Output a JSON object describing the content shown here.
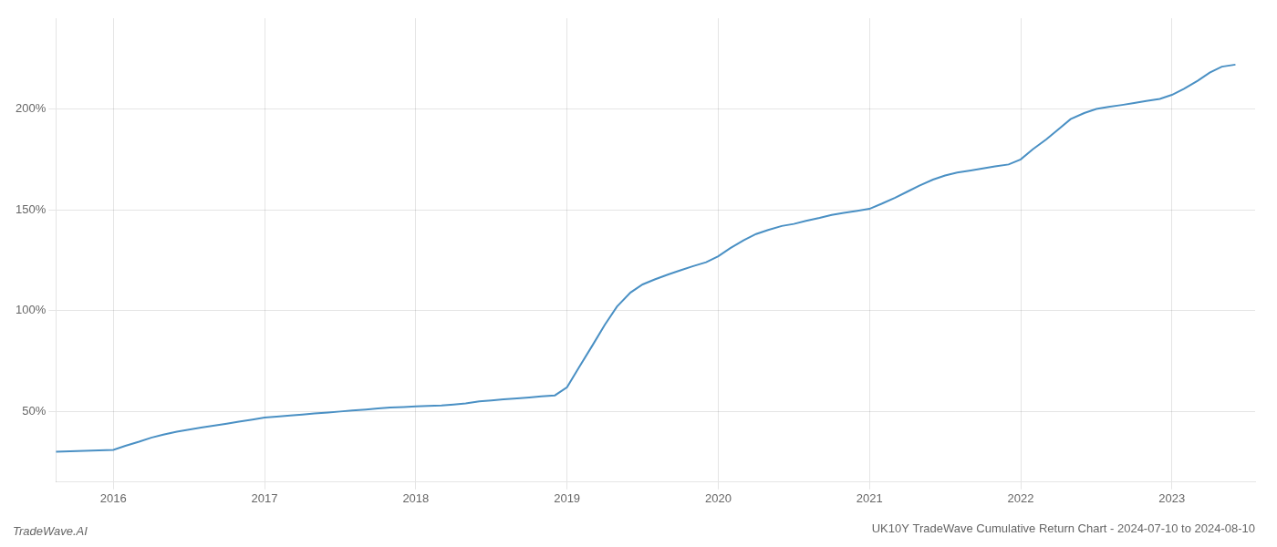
{
  "chart_data": {
    "type": "line",
    "title": "UK10Y TradeWave Cumulative Return Chart - 2024-07-10 to 2024-08-10",
    "annotations": [
      "TradeWave.AI"
    ],
    "color": "#4a90c4",
    "grid": true,
    "xlim": [
      2015.62,
      2023.55
    ],
    "ylim": [
      15,
      245
    ],
    "xticks": [
      2016,
      2017,
      2018,
      2019,
      2020,
      2021,
      2022,
      2023
    ],
    "yticks": [
      {
        "value": 50,
        "label": "50%"
      },
      {
        "value": 100,
        "label": "100%"
      },
      {
        "value": 150,
        "label": "150%"
      },
      {
        "value": 200,
        "label": "200%"
      }
    ],
    "x": [
      2015.62,
      2016.0,
      2016.08,
      2016.17,
      2016.25,
      2016.33,
      2016.42,
      2016.5,
      2016.58,
      2016.67,
      2016.75,
      2016.83,
      2016.92,
      2017.0,
      2017.08,
      2017.17,
      2017.25,
      2017.33,
      2017.42,
      2017.5,
      2017.58,
      2017.67,
      2017.75,
      2017.83,
      2017.92,
      2018.0,
      2018.08,
      2018.17,
      2018.25,
      2018.33,
      2018.42,
      2018.5,
      2018.58,
      2018.67,
      2018.75,
      2018.83,
      2018.92,
      2019.0,
      2019.08,
      2019.17,
      2019.25,
      2019.33,
      2019.42,
      2019.5,
      2019.58,
      2019.67,
      2019.75,
      2019.83,
      2019.92,
      2020.0,
      2020.08,
      2020.17,
      2020.25,
      2020.33,
      2020.42,
      2020.5,
      2020.58,
      2020.67,
      2020.75,
      2020.83,
      2020.92,
      2021.0,
      2021.08,
      2021.17,
      2021.25,
      2021.33,
      2021.42,
      2021.5,
      2021.58,
      2021.67,
      2021.75,
      2021.83,
      2021.92,
      2022.0,
      2022.08,
      2022.17,
      2022.25,
      2022.33,
      2022.42,
      2022.5,
      2022.58,
      2022.67,
      2022.75,
      2022.83,
      2022.92,
      2023.0,
      2023.08,
      2023.17,
      2023.25,
      2023.33,
      2023.42
    ],
    "values": [
      30,
      31,
      33,
      35,
      37,
      38.5,
      40,
      41,
      42,
      43,
      44,
      45,
      46,
      47,
      47.5,
      48,
      48.5,
      49,
      49.5,
      50,
      50.5,
      51,
      51.5,
      52,
      52.2,
      52.5,
      52.8,
      53,
      53.5,
      54,
      55,
      55.5,
      56,
      56.5,
      57,
      57.5,
      58,
      62,
      72,
      83,
      93,
      102,
      109,
      113,
      115.5,
      118,
      120,
      122,
      124,
      127,
      131,
      135,
      138,
      140,
      142,
      143,
      144.5,
      146,
      147.5,
      148.5,
      149.5,
      150.5,
      153,
      156,
      159,
      162,
      165,
      167,
      168.5,
      169.5,
      170.5,
      171.5,
      172.5,
      175,
      180,
      185,
      190,
      195,
      198,
      200,
      201,
      202,
      203,
      204,
      205,
      207,
      210,
      214,
      218,
      221,
      222
    ]
  }
}
